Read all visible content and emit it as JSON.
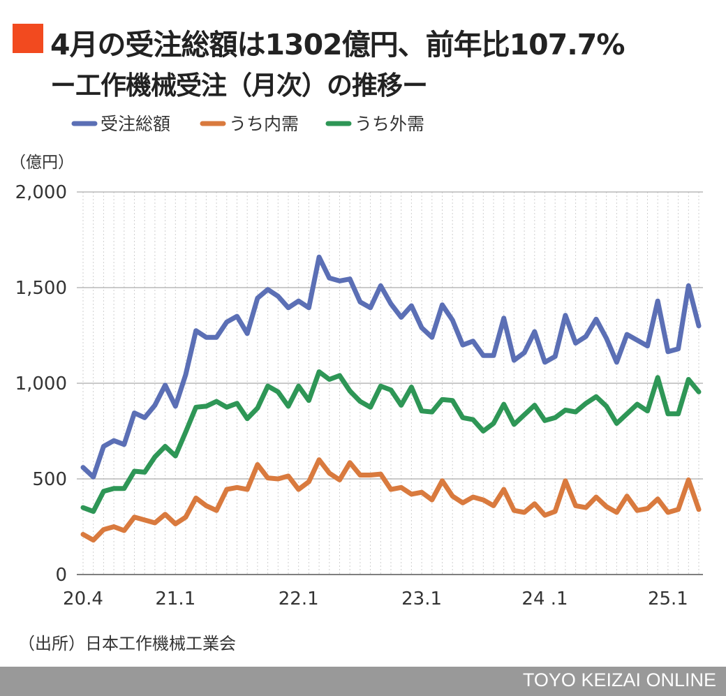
{
  "title": "4月の受注総額は1302億円、前年比107.7%",
  "subtitle": "ー工作機械受注（月次）の推移ー",
  "source": "（出所）日本工作機械工業会",
  "brand": "TOYO KEIZAI ONLINE",
  "colors": {
    "marker": "#f24a1f",
    "total": "#5b6fb5",
    "domestic": "#d97a3e",
    "foreign": "#2e9656",
    "footer": "#999999"
  },
  "chart_data": {
    "type": "line",
    "unit_label": "（億円）",
    "ylim": [
      0,
      2000
    ],
    "yticks": [
      0,
      500,
      1000,
      1500,
      2000
    ],
    "ytick_labels": [
      "0",
      "500",
      "1,000",
      "1,500",
      "2,000"
    ],
    "xtick_labels": [
      {
        "label": "20.4",
        "index": 0
      },
      {
        "label": "21.1",
        "index": 9
      },
      {
        "label": "22.1",
        "index": 21
      },
      {
        "label": "23.1",
        "index": 33
      },
      {
        "label": "24 .1",
        "index": 45
      },
      {
        "label": "25.1",
        "index": 57
      }
    ],
    "grid": true,
    "legend_position": "top-left",
    "x": [
      "2020-04",
      "2020-05",
      "2020-06",
      "2020-07",
      "2020-08",
      "2020-09",
      "2020-10",
      "2020-11",
      "2020-12",
      "2021-01",
      "2021-02",
      "2021-03",
      "2021-04",
      "2021-05",
      "2021-06",
      "2021-07",
      "2021-08",
      "2021-09",
      "2021-10",
      "2021-11",
      "2021-12",
      "2022-01",
      "2022-02",
      "2022-03",
      "2022-04",
      "2022-05",
      "2022-06",
      "2022-07",
      "2022-08",
      "2022-09",
      "2022-10",
      "2022-11",
      "2022-12",
      "2023-01",
      "2023-02",
      "2023-03",
      "2023-04",
      "2023-05",
      "2023-06",
      "2023-07",
      "2023-08",
      "2023-09",
      "2023-10",
      "2023-11",
      "2023-12",
      "2024-01",
      "2024-02",
      "2024-03",
      "2024-04",
      "2024-05",
      "2024-06",
      "2024-07",
      "2024-08",
      "2024-09",
      "2024-10",
      "2024-11",
      "2024-12",
      "2025-01",
      "2025-02",
      "2025-03",
      "2025-04"
    ],
    "series": [
      {
        "name": "受注総額",
        "values": [
          560,
          510,
          670,
          700,
          680,
          845,
          820,
          885,
          990,
          880,
          1045,
          1275,
          1240,
          1240,
          1320,
          1350,
          1260,
          1445,
          1490,
          1455,
          1395,
          1430,
          1395,
          1660,
          1550,
          1535,
          1545,
          1425,
          1395,
          1510,
          1415,
          1345,
          1405,
          1290,
          1240,
          1410,
          1330,
          1200,
          1220,
          1145,
          1145,
          1340,
          1120,
          1160,
          1270,
          1110,
          1140,
          1355,
          1210,
          1245,
          1335,
          1235,
          1110,
          1255,
          1225,
          1195,
          1430,
          1165,
          1180,
          1510,
          1300
        ]
      },
      {
        "name": "うち内需",
        "values": [
          210,
          180,
          235,
          250,
          230,
          300,
          285,
          270,
          315,
          265,
          300,
          400,
          360,
          335,
          445,
          455,
          445,
          575,
          505,
          500,
          515,
          445,
          485,
          600,
          530,
          495,
          585,
          520,
          520,
          525,
          445,
          455,
          420,
          430,
          390,
          490,
          410,
          375,
          405,
          390,
          360,
          445,
          335,
          325,
          370,
          310,
          330,
          490,
          360,
          350,
          405,
          355,
          325,
          410,
          335,
          345,
          395,
          325,
          340,
          495,
          340
        ]
      },
      {
        "name": "うち外需",
        "values": [
          350,
          330,
          435,
          450,
          450,
          540,
          535,
          615,
          670,
          620,
          745,
          875,
          880,
          905,
          875,
          895,
          815,
          870,
          985,
          955,
          880,
          985,
          910,
          1060,
          1020,
          1040,
          960,
          905,
          875,
          985,
          965,
          885,
          980,
          855,
          850,
          915,
          910,
          820,
          810,
          750,
          790,
          890,
          785,
          835,
          885,
          805,
          820,
          860,
          850,
          895,
          930,
          880,
          790,
          840,
          890,
          855,
          1030,
          840,
          840,
          1020,
          955
        ]
      }
    ]
  }
}
